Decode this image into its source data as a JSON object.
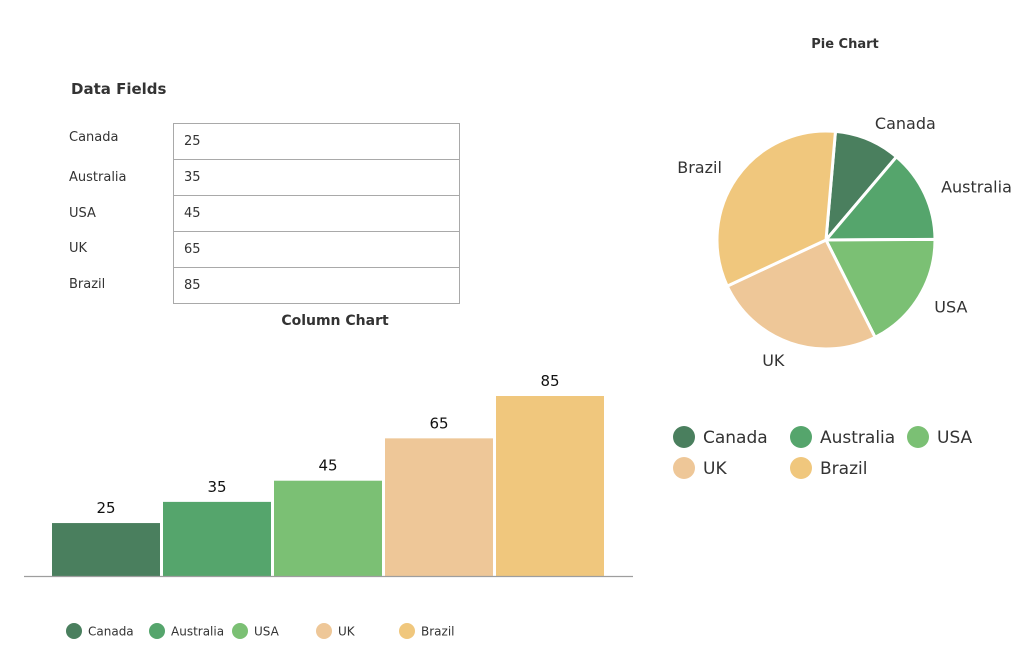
{
  "form": {
    "title": "Data Fields",
    "fields": [
      {
        "label": "Canada",
        "value": "25"
      },
      {
        "label": "Australia",
        "value": "35"
      },
      {
        "label": "USA",
        "value": "45"
      },
      {
        "label": "UK",
        "value": "65"
      },
      {
        "label": "Brazil",
        "value": "85"
      }
    ]
  },
  "chart_data": [
    {
      "type": "bar",
      "title": "Column Chart",
      "categories": [
        "Canada",
        "Australia",
        "USA",
        "UK",
        "Brazil"
      ],
      "values": [
        25,
        35,
        45,
        65,
        85
      ],
      "colors": [
        "#4a7f5e",
        "#55a56c",
        "#7bc074",
        "#eec798",
        "#f0c77d"
      ],
      "xlabel": "",
      "ylabel": "",
      "ylim": [
        0,
        85
      ],
      "grid": false,
      "legend": "bottom"
    },
    {
      "type": "pie",
      "title": "Pie Chart",
      "categories": [
        "Canada",
        "Australia",
        "USA",
        "UK",
        "Brazil"
      ],
      "values": [
        25,
        35,
        45,
        65,
        85
      ],
      "colors": [
        "#4a7f5e",
        "#55a56c",
        "#7bc074",
        "#eec798",
        "#f0c77d"
      ],
      "legend": "bottom"
    }
  ]
}
